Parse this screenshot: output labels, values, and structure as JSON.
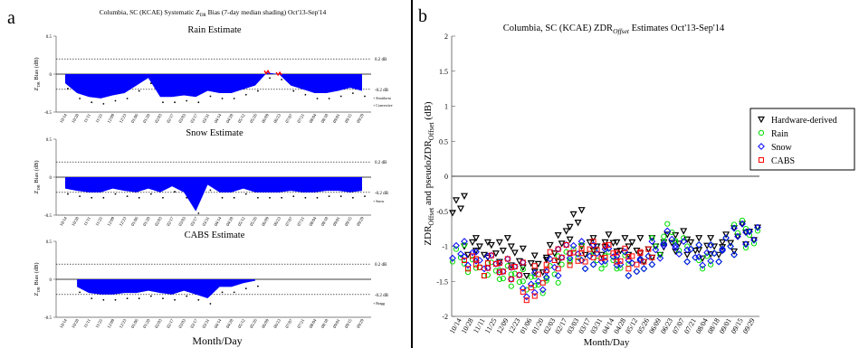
{
  "panel_a": {
    "letter": "a",
    "header": "Columbia, SC (KCAE)  Systematic Z",
    "header_sub": "DR",
    "header_rest": " Bias (7-day median shading) Oct'13-Sep'14",
    "ylabel_main": "Z",
    "ylabel_sub": "DR",
    "ylabel_rest": " Bias (dB)",
    "xlabel": "Month/Day",
    "ref_high": "0.2 dB",
    "ref_low": "-0.2 dB",
    "shade_color": "#0000ff"
  },
  "panel_b": {
    "letter": "b",
    "title_main": "Columbia, SC (KCAE)  ZDR",
    "title_sub": "Offset",
    "title_rest": " Estimates Oct'13-Sep'14",
    "ylabel_a": "ZDR",
    "ylabel_a_sub": "Offset",
    "ylabel_b": " and pseudoZDR",
    "ylabel_b_sub": "Offset",
    "ylabel_c": " (dB)",
    "xlabel": "Month/Day"
  },
  "chart_data": [
    {
      "type": "area",
      "title": "Rain Estimate",
      "ylim": [
        -0.5,
        0.5
      ],
      "yticks": [
        -0.5,
        0,
        0.5
      ],
      "x": [
        "10/14",
        "10/28",
        "11/11",
        "11/25",
        "12/09",
        "12/23",
        "01/06",
        "01/20",
        "02/03",
        "02/17",
        "03/03",
        "03/17",
        "03/31",
        "04/14",
        "04/28",
        "05/12",
        "05/26",
        "06/09",
        "06/23",
        "07/07",
        "07/21",
        "08/04",
        "08/18",
        "09/01",
        "09/15",
        "09/29"
      ],
      "series": [
        {
          "values": [
            -0.12,
            -0.25,
            -0.3,
            -0.32,
            -0.28,
            -0.25,
            -0.15,
            -0.05,
            -0.3,
            -0.3,
            -0.28,
            -0.3,
            -0.22,
            -0.25,
            -0.25,
            -0.2,
            -0.15,
            0.02,
            0.0,
            -0.15,
            -0.2,
            -0.25,
            -0.25,
            -0.22,
            -0.18,
            -0.22
          ]
        }
      ],
      "legend": [
        "Stratiform",
        "Convective"
      ],
      "highlight_color": "#ff0000"
    },
    {
      "type": "area",
      "title": "Snow Estimate",
      "ylim": [
        -0.5,
        0.5
      ],
      "yticks": [
        -0.5,
        0,
        0.5
      ],
      "x": [
        "10/14",
        "10/28",
        "11/11",
        "11/25",
        "12/09",
        "12/23",
        "01/06",
        "01/20",
        "02/03",
        "02/17",
        "03/03",
        "03/17",
        "03/31",
        "04/14",
        "04/28",
        "05/12",
        "05/26",
        "06/09",
        "06/23",
        "07/07",
        "07/21",
        "08/04",
        "08/18",
        "09/01",
        "09/15",
        "09/29"
      ],
      "series": [
        {
          "values": [
            -0.15,
            -0.18,
            -0.2,
            -0.2,
            -0.15,
            -0.18,
            -0.2,
            -0.15,
            -0.2,
            -0.12,
            -0.2,
            -0.45,
            -0.1,
            -0.2,
            -0.2,
            -0.15,
            -0.2,
            -0.2,
            -0.2,
            -0.18,
            -0.2,
            -0.2,
            -0.18,
            -0.18,
            -0.2,
            -0.18
          ]
        }
      ],
      "legend": [
        "Snow"
      ]
    },
    {
      "type": "area",
      "title": "CABS Estimate",
      "ylim": [
        -0.5,
        0.5
      ],
      "yticks": [
        -0.5,
        0,
        0.5
      ],
      "x": [
        "10/14",
        "10/28",
        "11/11",
        "11/25",
        "12/09",
        "12/23",
        "01/06",
        "01/20",
        "02/03",
        "02/17",
        "03/03",
        "03/17",
        "03/31",
        "04/14",
        "04/28",
        "05/12",
        "05/26",
        "06/09",
        "06/23",
        "07/07",
        "07/21",
        "08/04",
        "08/18",
        "09/01",
        "09/15",
        "09/29"
      ],
      "series": [
        {
          "values": [
            null,
            -0.1,
            -0.18,
            -0.2,
            -0.2,
            -0.18,
            -0.18,
            -0.15,
            -0.18,
            -0.2,
            -0.15,
            -0.2,
            -0.25,
            -0.1,
            -0.1,
            -0.05,
            -0.02,
            null,
            null,
            null,
            null,
            null,
            null,
            null,
            null,
            null
          ]
        }
      ],
      "legend": [
        "Bragg"
      ]
    },
    {
      "type": "scatter",
      "title": "Columbia, SC (KCAE)  ZDROffset Estimates Oct'13-Sep'14",
      "xlabel": "Month/Day",
      "ylabel": "ZDROffset and pseudoZDROffset (dB)",
      "ylim": [
        -2,
        2
      ],
      "yticks": [
        -2,
        -1.5,
        -1,
        -0.5,
        0,
        0.5,
        1,
        1.5,
        2
      ],
      "x": [
        "10/14",
        "10/28",
        "11/11",
        "11/25",
        "12/09",
        "12/23",
        "01/06",
        "01/20",
        "02/03",
        "02/17",
        "03/03",
        "03/17",
        "03/31",
        "04/14",
        "04/28",
        "05/12",
        "05/26",
        "06/09",
        "06/23",
        "07/07",
        "07/21",
        "08/04",
        "08/18",
        "09/01",
        "09/15",
        "09/29"
      ],
      "legend_position": "right",
      "series": [
        {
          "name": "Hardware-derived",
          "marker": "triangle-down",
          "color": "#000000",
          "values": [
            -0.4,
            -1.0,
            -1.0,
            -1.1,
            -1.0,
            -1.15,
            -1.3,
            -1.25,
            -1.1,
            -0.9,
            -0.6,
            -1.0,
            -1.0,
            -0.95,
            -1.0,
            -1.0,
            -1.1,
            -1.0,
            -0.95,
            -0.9,
            -1.0,
            -1.05,
            -1.0,
            -0.95,
            -0.8,
            -0.85
          ]
        },
        {
          "name": "Rain",
          "marker": "circle",
          "color": "#00dd00",
          "values": [
            -1.1,
            -1.25,
            -1.3,
            -1.35,
            -1.4,
            -1.45,
            -1.5,
            -1.55,
            -1.4,
            -1.2,
            -1.1,
            -1.2,
            -1.2,
            -1.2,
            -1.25,
            -1.3,
            -1.2,
            -1.0,
            -0.8,
            -1.0,
            -1.1,
            -1.2,
            -1.1,
            -1.0,
            -0.75,
            -0.9
          ]
        },
        {
          "name": "Snow",
          "marker": "diamond",
          "color": "#0000ff",
          "values": [
            -1.05,
            -1.15,
            -1.2,
            -1.25,
            -1.3,
            -1.35,
            -1.6,
            -1.5,
            -1.3,
            -1.1,
            -1.05,
            -1.2,
            -1.1,
            -1.15,
            -1.2,
            -1.3,
            -1.2,
            -1.05,
            -0.9,
            -1.05,
            -1.1,
            -1.15,
            -1.1,
            -1.0,
            -0.8,
            -0.85
          ]
        },
        {
          "name": "CABS",
          "marker": "square",
          "color": "#ff0000",
          "values": [
            null,
            -1.2,
            -1.3,
            -1.25,
            -1.3,
            -1.35,
            -1.65,
            -1.4,
            -1.2,
            -1.1,
            -1.15,
            -1.1,
            -1.05,
            -1.1,
            -1.15,
            -1.2,
            -1.1,
            null,
            null,
            null,
            null,
            null,
            null,
            null,
            null,
            null
          ]
        }
      ]
    }
  ]
}
